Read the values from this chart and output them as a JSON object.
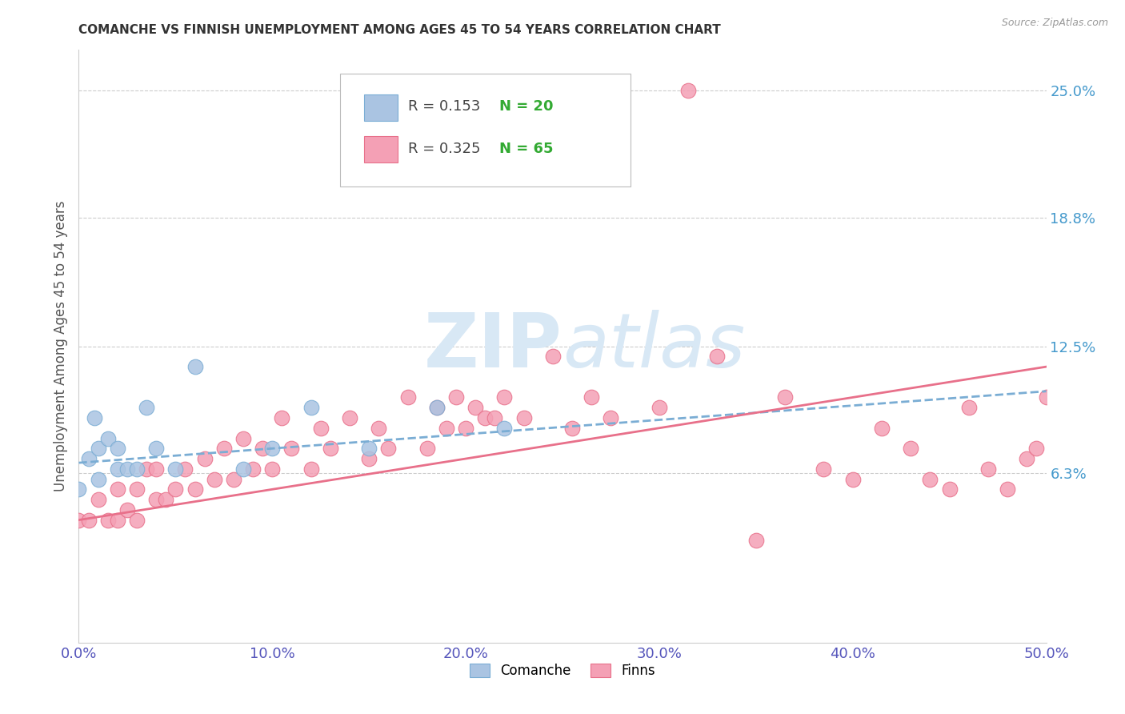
{
  "title": "COMANCHE VS FINNISH UNEMPLOYMENT AMONG AGES 45 TO 54 YEARS CORRELATION CHART",
  "source": "Source: ZipAtlas.com",
  "ylabel": "Unemployment Among Ages 45 to 54 years",
  "xlim": [
    0.0,
    0.5
  ],
  "ylim": [
    -0.02,
    0.27
  ],
  "xticks": [
    0.0,
    0.1,
    0.2,
    0.3,
    0.4,
    0.5
  ],
  "xticklabels": [
    "0.0%",
    "10.0%",
    "20.0%",
    "30.0%",
    "40.0%",
    "50.0%"
  ],
  "ytick_positions": [
    0.063,
    0.125,
    0.188,
    0.25
  ],
  "ytick_labels": [
    "6.3%",
    "12.5%",
    "18.8%",
    "25.0%"
  ],
  "comanche_R": 0.153,
  "comanche_N": 20,
  "finns_R": 0.325,
  "finns_N": 65,
  "comanche_color": "#aac4e2",
  "finns_color": "#f4a0b5",
  "comanche_edge_color": "#7aadd4",
  "finns_edge_color": "#e8708a",
  "comanche_line_color": "#7aadd4",
  "finns_line_color": "#e8708a",
  "background_color": "#ffffff",
  "grid_color": "#cccccc",
  "title_color": "#333333",
  "axis_label_color": "#555555",
  "tick_label_color_x": "#5555bb",
  "tick_label_color_y": "#4499cc",
  "watermark_color": "#d8e8f5",
  "comanche_line_start_y": 0.068,
  "comanche_line_end_y": 0.103,
  "finns_line_start_y": 0.04,
  "finns_line_end_y": 0.115,
  "comanche_x": [
    0.0,
    0.005,
    0.008,
    0.01,
    0.01,
    0.015,
    0.02,
    0.02,
    0.025,
    0.03,
    0.035,
    0.04,
    0.05,
    0.06,
    0.085,
    0.1,
    0.12,
    0.15,
    0.185,
    0.22
  ],
  "comanche_y": [
    0.055,
    0.07,
    0.09,
    0.06,
    0.075,
    0.08,
    0.065,
    0.075,
    0.065,
    0.065,
    0.095,
    0.075,
    0.065,
    0.115,
    0.065,
    0.075,
    0.095,
    0.075,
    0.095,
    0.085
  ],
  "finns_x": [
    0.0,
    0.005,
    0.01,
    0.015,
    0.02,
    0.02,
    0.025,
    0.03,
    0.03,
    0.035,
    0.04,
    0.04,
    0.045,
    0.05,
    0.055,
    0.06,
    0.065,
    0.07,
    0.075,
    0.08,
    0.085,
    0.09,
    0.095,
    0.1,
    0.105,
    0.11,
    0.12,
    0.125,
    0.13,
    0.14,
    0.15,
    0.155,
    0.16,
    0.17,
    0.18,
    0.185,
    0.19,
    0.195,
    0.2,
    0.205,
    0.21,
    0.215,
    0.22,
    0.23,
    0.245,
    0.255,
    0.265,
    0.275,
    0.3,
    0.315,
    0.33,
    0.35,
    0.365,
    0.385,
    0.4,
    0.415,
    0.43,
    0.44,
    0.45,
    0.46,
    0.47,
    0.48,
    0.49,
    0.495,
    0.5
  ],
  "finns_y": [
    0.04,
    0.04,
    0.05,
    0.04,
    0.04,
    0.055,
    0.045,
    0.04,
    0.055,
    0.065,
    0.05,
    0.065,
    0.05,
    0.055,
    0.065,
    0.055,
    0.07,
    0.06,
    0.075,
    0.06,
    0.08,
    0.065,
    0.075,
    0.065,
    0.09,
    0.075,
    0.065,
    0.085,
    0.075,
    0.09,
    0.07,
    0.085,
    0.075,
    0.1,
    0.075,
    0.095,
    0.085,
    0.1,
    0.085,
    0.095,
    0.09,
    0.09,
    0.1,
    0.09,
    0.12,
    0.085,
    0.1,
    0.09,
    0.095,
    0.25,
    0.12,
    0.03,
    0.1,
    0.065,
    0.06,
    0.085,
    0.075,
    0.06,
    0.055,
    0.095,
    0.065,
    0.055,
    0.07,
    0.075,
    0.1
  ]
}
